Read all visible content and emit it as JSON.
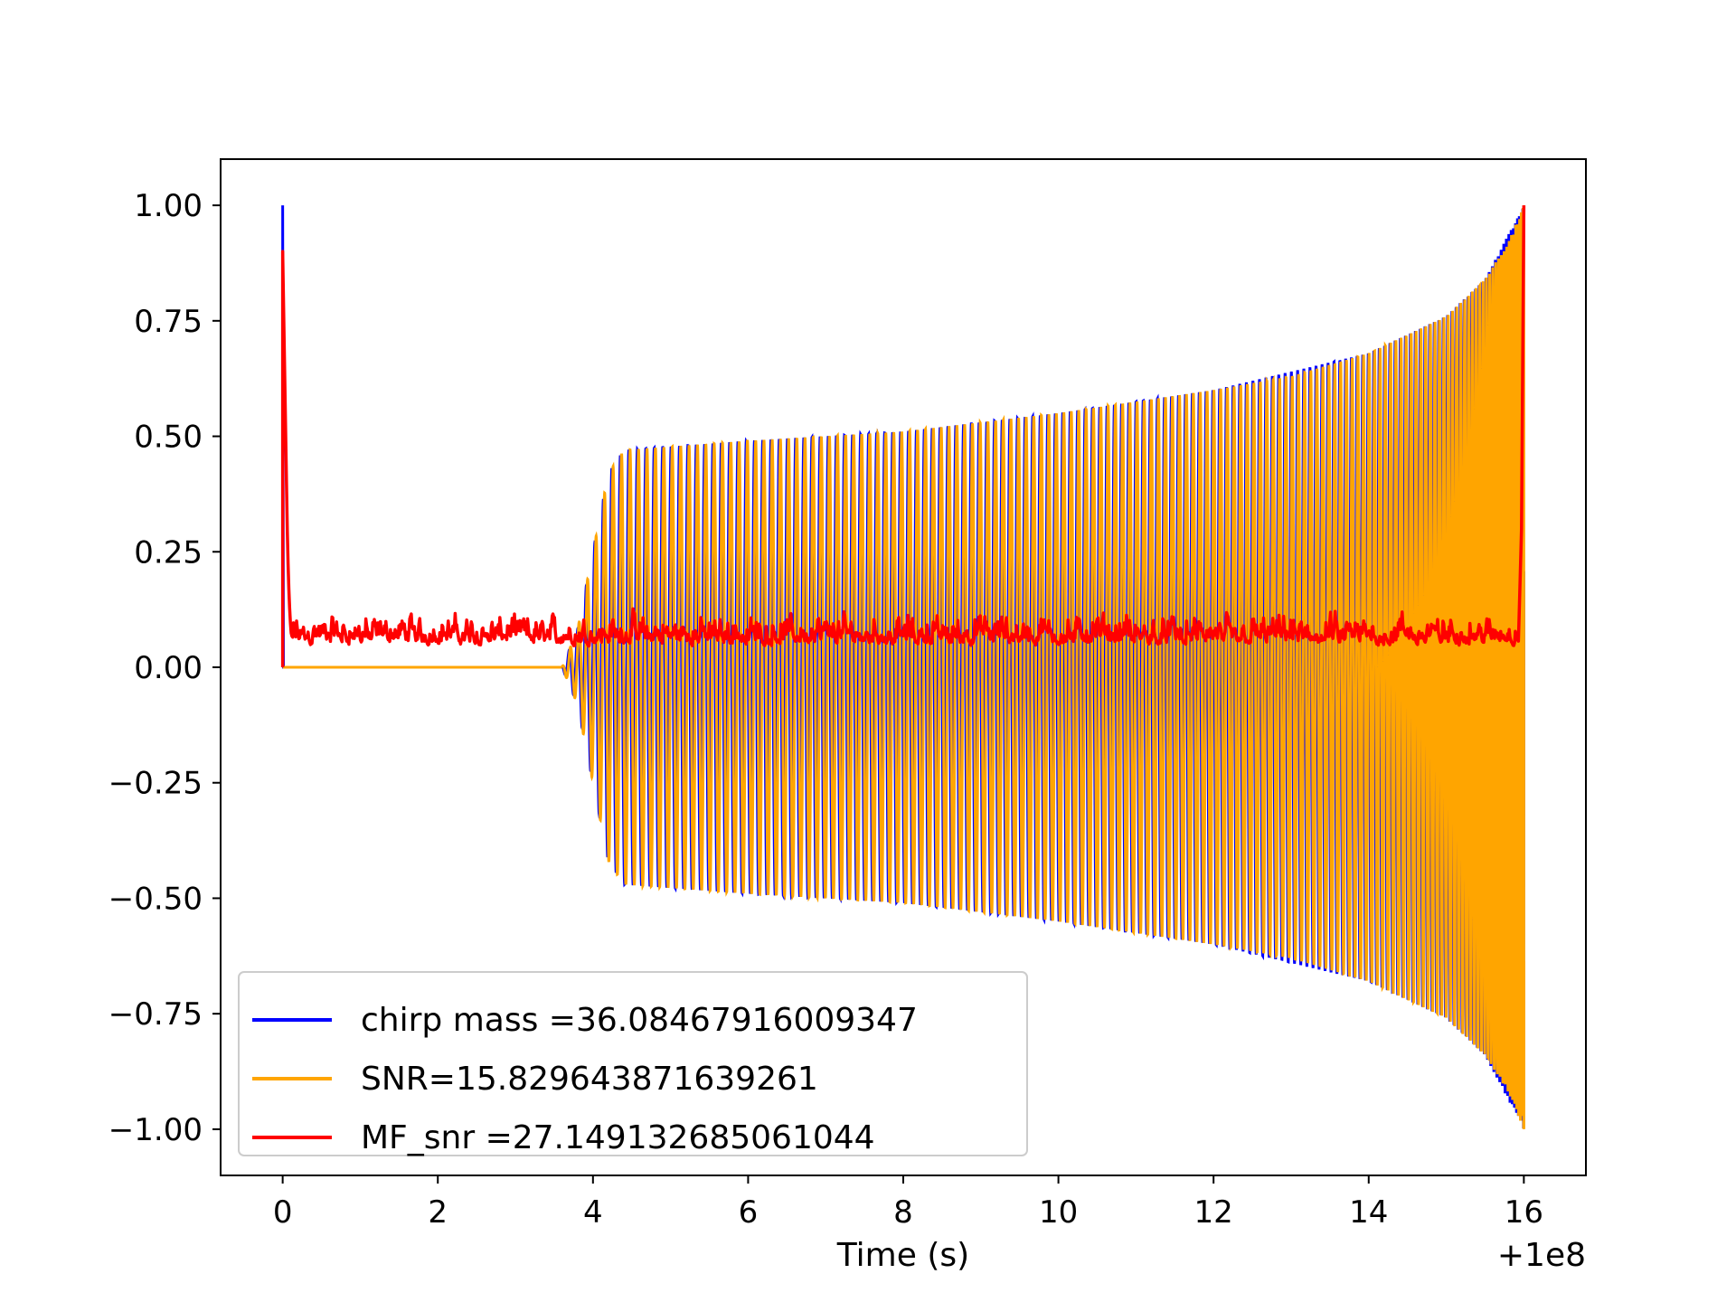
{
  "chart_data": {
    "type": "line",
    "xlabel": "Time (s)",
    "ylabel": "",
    "x_offset_label": "+1e8",
    "xlim": [
      -0.8,
      16.8
    ],
    "ylim": [
      -1.1,
      1.1
    ],
    "xticks": [
      0,
      2,
      4,
      6,
      8,
      10,
      12,
      14,
      16
    ],
    "xtick_labels": [
      "0",
      "2",
      "4",
      "6",
      "8",
      "10",
      "12",
      "14",
      "16"
    ],
    "yticks": [
      1.0,
      0.75,
      0.5,
      0.25,
      0.0,
      -0.25,
      -0.5,
      -0.75,
      -1.0
    ],
    "ytick_labels": [
      "1.00",
      "0.75",
      "0.50",
      "0.25",
      "0.00",
      "−0.25",
      "−0.50",
      "−0.75",
      "−1.00"
    ],
    "grid": false,
    "legend_position": "lower-left",
    "series": [
      {
        "name": "chirp mass =36.08467916009347",
        "color": "#0000ff",
        "description": "whitened/normalized chirp template; spike to 1.0 at t=0, zero until ~3.6 s, then oscillation growing to ~0.47 by 4.4 s and slowly increasing to ~0.6 near 12 s",
        "envelope": [
          [
            3.6,
            0.0
          ],
          [
            3.8,
            0.08
          ],
          [
            4.0,
            0.25
          ],
          [
            4.2,
            0.42
          ],
          [
            4.4,
            0.47
          ],
          [
            6,
            0.49
          ],
          [
            8,
            0.51
          ],
          [
            10,
            0.55
          ],
          [
            12,
            0.6
          ],
          [
            14,
            0.68
          ],
          [
            15,
            0.76
          ],
          [
            15.5,
            0.84
          ],
          [
            16.0,
            1.0
          ]
        ]
      },
      {
        "name": "SNR=15.829643871639261",
        "color": "#ffa500",
        "description": "chirp signal; zero until ~3.6 s, then oscillation with envelope growing to 1.0 at 16 s",
        "envelope": [
          [
            3.6,
            0.0
          ],
          [
            3.8,
            0.08
          ],
          [
            4.0,
            0.25
          ],
          [
            4.2,
            0.42
          ],
          [
            4.4,
            0.47
          ],
          [
            6,
            0.49
          ],
          [
            8,
            0.51
          ],
          [
            10,
            0.55
          ],
          [
            12,
            0.6
          ],
          [
            13,
            0.63
          ],
          [
            14,
            0.68
          ],
          [
            14.5,
            0.72
          ],
          [
            15,
            0.76
          ],
          [
            15.5,
            0.84
          ],
          [
            15.8,
            0.92
          ],
          [
            16.0,
            1.0
          ]
        ]
      },
      {
        "name": "MF_snr =27.149132685061044",
        "color": "#ff0000",
        "description": "matched-filter SNR (normalized); ~0.9 at t=0, noisy around 0.03-0.1 through the run, peaking at 1.0 at t=16",
        "start_value": 0.9,
        "end_value": 1.0,
        "baseline": [
          0.0,
          0.12
        ]
      }
    ]
  }
}
